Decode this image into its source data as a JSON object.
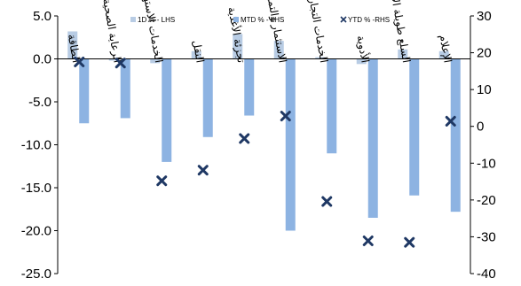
{
  "chart_data": {
    "type": "bar",
    "title": "",
    "categories": [
      "الطاقة",
      "الرعاية الصحية",
      "الخدمات الاستهلاكية",
      "النقل",
      "تجزئة الأغذية",
      "الاستثمار والتمويل",
      "الخدمات التجارية",
      "الأدوية",
      "السلع طويلة الأجل",
      "الإعلام"
    ],
    "series": [
      {
        "name": "1D % - LHS",
        "axis": "left",
        "kind": "bar",
        "color": "#b8cce4",
        "values": [
          3.2,
          -0.2,
          -0.5,
          0.9,
          2.9,
          2.1,
          0.2,
          -0.6,
          1.1,
          0.9
        ]
      },
      {
        "name": "MTD % - LHS",
        "axis": "left",
        "kind": "bar",
        "color": "#8db3e2",
        "values": [
          -7.5,
          -6.9,
          -12.0,
          -9.1,
          -6.6,
          -20.0,
          -11.0,
          -18.5,
          -15.9,
          -17.8
        ]
      },
      {
        "name": "YTD % -RHS",
        "axis": "right",
        "kind": "marker",
        "color": "#1f3864",
        "values": [
          17.5,
          17.2,
          -14.8,
          -11.9,
          -3.3,
          2.8,
          -20.4,
          -31.1,
          -31.5,
          1.4
        ]
      }
    ],
    "y_left": {
      "min": -25,
      "max": 5,
      "ticks": [
        "5.0",
        "0.0",
        "-5.0",
        "-10.0",
        "-15.0",
        "-20.0",
        "-25.0"
      ]
    },
    "y_right": {
      "min": -40,
      "max": 30,
      "ticks": [
        "30",
        "20",
        "10",
        "0",
        "-10",
        "-20",
        "-30",
        "-40"
      ]
    },
    "legend_position": "top",
    "grid": false
  }
}
